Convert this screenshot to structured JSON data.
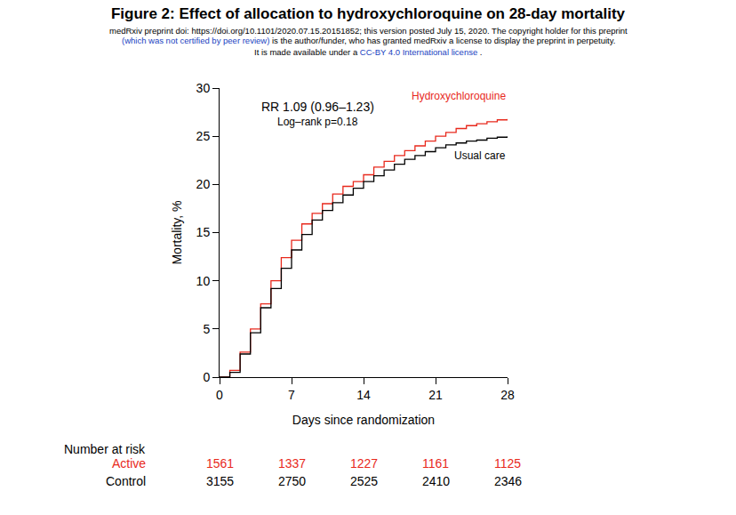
{
  "chart_data": {
    "type": "line",
    "line_style": "step",
    "title": "Figure 2: Effect of allocation to hydroxychloroquine on 28-day mortality",
    "header_lines": [
      [
        {
          "text": "medRxiv preprint doi: https://doi.org/10.1101/2020.07.15.20151852; this version posted July 15, 2020. The copyright holder for this preprint",
          "color": "#000000"
        }
      ],
      [
        {
          "text": "(which was not certified by peer review)",
          "color": "#1a3fbf"
        },
        {
          "text": " is the author/funder, who has granted medRxiv a license to display the preprint in perpetuity.",
          "color": "#000000"
        }
      ],
      [
        {
          "text": "It is made available under a ",
          "color": "#000000"
        },
        {
          "text": "CC-BY 4.0 International license",
          "color": "#1a3fbf"
        },
        {
          "text": " .",
          "color": "#000000"
        }
      ]
    ],
    "annotations": [
      "RR 1.09 (0.96–1.23)",
      "Log–rank p=0.18"
    ],
    "x_label": "Days since randomization",
    "y_label": "Mortality, %",
    "x": [
      0,
      1,
      2,
      3,
      4,
      5,
      6,
      7,
      8,
      9,
      10,
      11,
      12,
      13,
      14,
      15,
      16,
      17,
      18,
      19,
      20,
      21,
      22,
      23,
      24,
      25,
      26,
      27,
      28
    ],
    "series": [
      {
        "name": "Hydroxychloroquine",
        "color": "#e8291c",
        "values": [
          0,
          0.7,
          2.6,
          5.0,
          7.6,
          10.0,
          12.4,
          14.2,
          15.9,
          17.0,
          18.0,
          19.0,
          19.8,
          20.3,
          21.0,
          21.8,
          22.4,
          23.0,
          23.5,
          24.0,
          24.5,
          25.0,
          25.4,
          25.8,
          26.1,
          26.3,
          26.5,
          26.7,
          26.8
        ]
      },
      {
        "name": "Usual care",
        "color": "#000000",
        "values": [
          0,
          0.5,
          2.4,
          4.6,
          7.2,
          9.2,
          11.3,
          13.2,
          14.8,
          16.3,
          17.3,
          18.1,
          18.9,
          19.6,
          20.3,
          20.9,
          21.5,
          22.1,
          22.6,
          23.0,
          23.4,
          23.8,
          24.1,
          24.3,
          24.5,
          24.6,
          24.8,
          24.9,
          25.0
        ]
      }
    ],
    "xlim": [
      0,
      28
    ],
    "xticks": [
      0,
      7,
      14,
      21,
      28
    ],
    "ylim": [
      0,
      30
    ],
    "yticks": [
      0,
      5,
      10,
      15,
      20,
      25,
      30
    ],
    "grid": false,
    "risk_table": {
      "title": "Number at risk",
      "days": [
        0,
        7,
        14,
        21,
        28
      ],
      "rows": [
        {
          "name": "Active",
          "color": "#e8291c",
          "values": [
            1561,
            1337,
            1227,
            1161,
            1125
          ]
        },
        {
          "name": "Control",
          "color": "#000000",
          "values": [
            3155,
            2750,
            2525,
            2410,
            2346
          ]
        }
      ]
    }
  }
}
